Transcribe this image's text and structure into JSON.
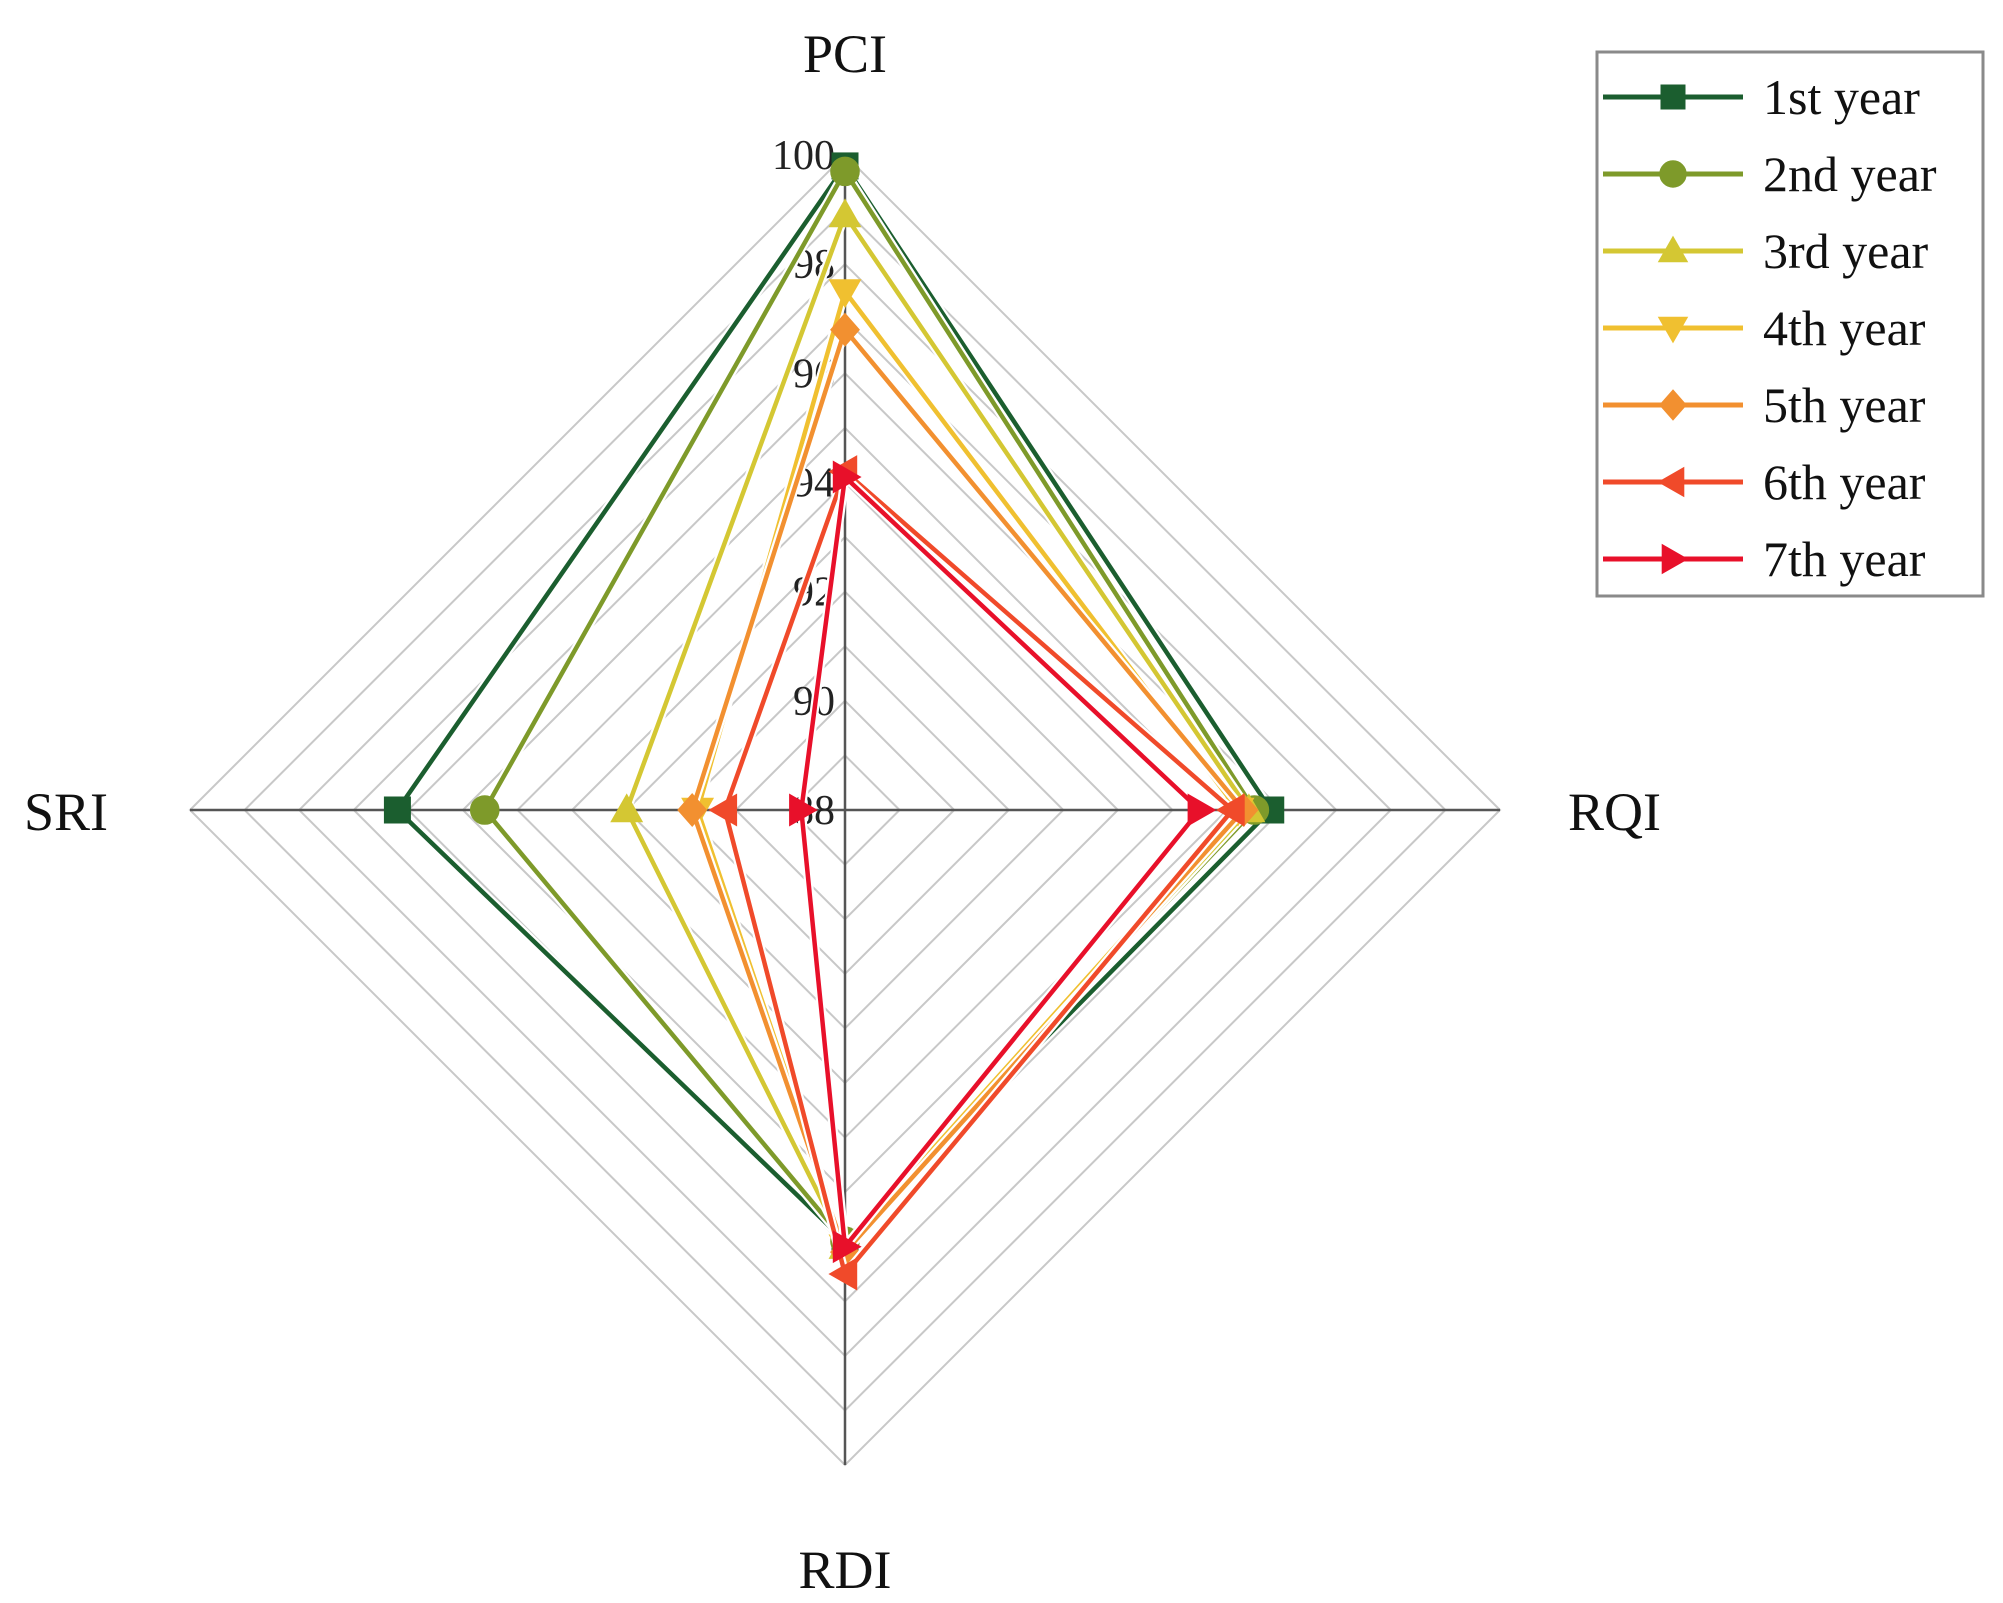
{
  "chart_data": {
    "type": "radar",
    "axes": [
      "PCI",
      "RQI",
      "RDI",
      "SRI"
    ],
    "range": [
      88,
      100
    ],
    "ticks": [
      "88",
      "90",
      "92",
      "94",
      "96",
      "98",
      "100"
    ],
    "grid": true,
    "legend_position": "top-right",
    "series": [
      {
        "name": "1st year",
        "color": "#1b5e2f",
        "marker": "square",
        "values": [
          99.8,
          95.8,
          95.9,
          96.2
        ]
      },
      {
        "name": "2nd year",
        "color": "#7e9a2a",
        "marker": "circle",
        "values": [
          99.7,
          95.5,
          95.9,
          94.6
        ]
      },
      {
        "name": "3rd year",
        "color": "#d4c733",
        "marker": "triangle-up",
        "values": [
          98.9,
          95.4,
          96.0,
          92.0
        ]
      },
      {
        "name": "4th year",
        "color": "#f0c030",
        "marker": "triangle-down",
        "values": [
          97.5,
          95.2,
          96.0,
          90.7
        ]
      },
      {
        "name": "5th year",
        "color": "#f29030",
        "marker": "diamond",
        "values": [
          96.8,
          95.3,
          96.1,
          90.8
        ]
      },
      {
        "name": "6th year",
        "color": "#f04a2a",
        "marker": "triangle-left",
        "values": [
          94.2,
          95.1,
          96.5,
          90.2
        ]
      },
      {
        "name": "7th year",
        "color": "#e8102a",
        "marker": "triangle-right",
        "values": [
          94.1,
          94.5,
          96.0,
          88.8
        ]
      }
    ]
  }
}
